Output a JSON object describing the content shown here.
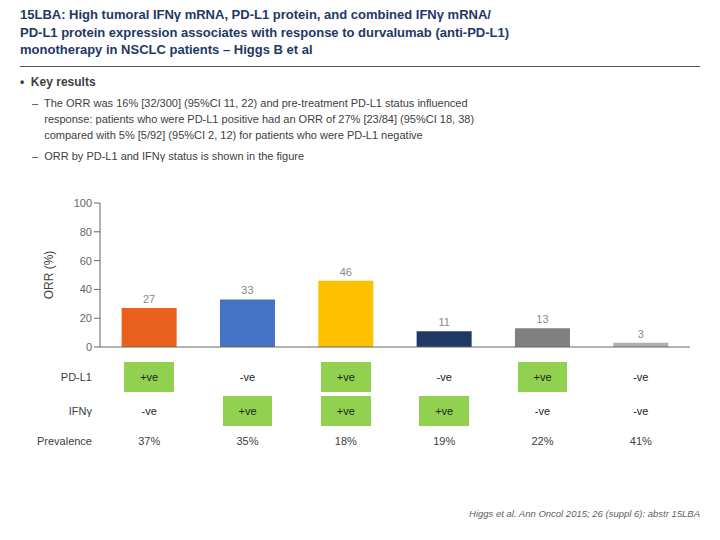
{
  "chart_data": {
    "type": "bar",
    "title": "15LBA: High tumoral IFNγ mRNA, PD-L1 protein, and combined IFNγ mRNA/\nPD-L1 protein expression associates with response to durvalumab (anti-PD-L1)\nmonotherapy in NSCLC patients – Higgs B et al",
    "categories": [
      null,
      null,
      null,
      null,
      null,
      null
    ],
    "values": [
      27,
      33,
      46,
      11,
      13,
      3
    ],
    "colors": [
      "#E8601C",
      "#4472C4",
      "#FFC000",
      "#1F3864",
      "#808080",
      "#B0B0B0"
    ],
    "ylabel": "ORR (%)",
    "ylim": [
      0,
      100
    ],
    "yticks": [
      0,
      20,
      40,
      60,
      80,
      100
    ],
    "grid": false,
    "data_labels": true,
    "tick_labels": "y",
    "annotations": [
      "•  Key results",
      "–  The ORR was 16% [32/300] (95%CI 11, 22) and pre-treatment PD-L1 status influenced\n    response: patients who were PD-L1 positive had an ORR of 27% [23/84] (95%CI 18, 38)\n    compared with 5% [5/92] (95%CI 2, 12) for patients who were PD-L1 negative",
      "–  ORR by PD-L1 and IFNγ status is shown in the figure",
      "Higgs et al. Ann Oncol 2015; 26 (suppl 6): abstr 15LBA"
    ],
    "table": {
      "rows": [
        {
          "name": "PD-L1",
          "labels": [
            "+ve",
            "-ve",
            "+ve",
            "-ve",
            "+ve",
            "-ve"
          ],
          "colors": [
            "#92D050",
            "#FFFFFF",
            "#92D050",
            "#FFFFFF",
            "#92D050",
            "#FFFFFF"
          ]
        },
        {
          "name": "IFNγ",
          "labels": [
            "-ve",
            "+ve",
            "+ve",
            "+ve",
            "-ve",
            "-ve"
          ],
          "colors": [
            "#FFFFFF",
            "#92D050",
            "#92D050",
            "#92D050",
            "#FFFFFF",
            "#FFFFFF"
          ]
        },
        {
          "name": "Prevalence",
          "values": [
            37,
            35,
            18,
            19,
            22,
            41
          ],
          "value_labels": [
            "37%",
            "35%",
            "18%",
            "19%",
            "22%",
            "41%"
          ]
        }
      ]
    }
  }
}
